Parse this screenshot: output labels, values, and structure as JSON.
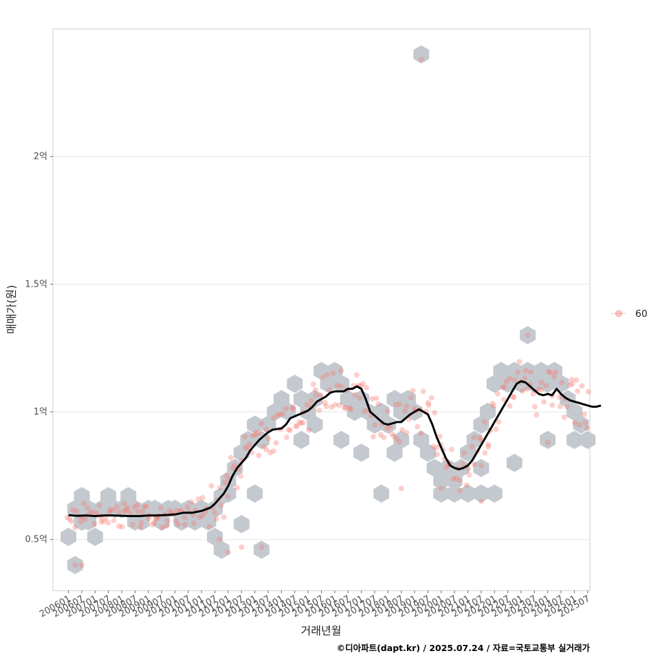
{
  "chart_data": {
    "type": "scatter",
    "title": "",
    "xlabel": "거래년월",
    "ylabel": "매매가(원)",
    "caption": "©디아파트(dapt.kr) / 2025.07.24 / 자료=국토교통부 실거래가",
    "x_unit": "months since 2006-01",
    "xlim": [
      -7,
      235
    ],
    "ylim": [
      0.3,
      2.5
    ],
    "grid": true,
    "legend_position": "right",
    "y_ticks": [
      {
        "value": 0.5,
        "label": "0.5억"
      },
      {
        "value": 1.0,
        "label": "1억"
      },
      {
        "value": 1.5,
        "label": "1.5억"
      },
      {
        "value": 2.0,
        "label": "2억"
      }
    ],
    "x_tick_labels": [
      "200601",
      "200607",
      "200701",
      "200707",
      "200801",
      "200807",
      "200901",
      "200907",
      "201001",
      "201007",
      "201101",
      "201107",
      "201201",
      "201207",
      "201301",
      "201307",
      "201401",
      "201407",
      "201501",
      "201507",
      "201601",
      "201607",
      "201701",
      "201707",
      "201801",
      "201807",
      "201901",
      "201907",
      "202001",
      "202007",
      "202101",
      "202107",
      "202201",
      "202207",
      "202301",
      "202307",
      "202401",
      "202407",
      "202501",
      "202507"
    ],
    "legend": [
      {
        "label": "60",
        "color": "#f8766d"
      }
    ],
    "colors": {
      "points": "#f8766d",
      "hex": "#c3c9cf",
      "trend": "#000000"
    },
    "hex_bins": [
      [
        0,
        0.51
      ],
      [
        3,
        0.62
      ],
      [
        6,
        0.67
      ],
      [
        9,
        0.62
      ],
      [
        12,
        0.51
      ],
      [
        9,
        0.57
      ],
      [
        6,
        0.57
      ],
      [
        15,
        0.62
      ],
      [
        18,
        0.67
      ],
      [
        21,
        0.62
      ],
      [
        24,
        0.62
      ],
      [
        27,
        0.67
      ],
      [
        30,
        0.62
      ],
      [
        33,
        0.57
      ],
      [
        36,
        0.62
      ],
      [
        30,
        0.57
      ],
      [
        39,
        0.62
      ],
      [
        42,
        0.57
      ],
      [
        45,
        0.62
      ],
      [
        48,
        0.62
      ],
      [
        51,
        0.57
      ],
      [
        54,
        0.62
      ],
      [
        57,
        0.57
      ],
      [
        60,
        0.62
      ],
      [
        63,
        0.57
      ],
      [
        66,
        0.62
      ],
      [
        69,
        0.67
      ],
      [
        72,
        0.73
      ],
      [
        75,
        0.78
      ],
      [
        78,
        0.84
      ],
      [
        81,
        0.89
      ],
      [
        84,
        0.95
      ],
      [
        87,
        0.89
      ],
      [
        90,
        0.95
      ],
      [
        93,
        1.0
      ],
      [
        96,
        1.05
      ],
      [
        99,
        1.0
      ],
      [
        102,
        1.11
      ],
      [
        105,
        1.05
      ],
      [
        108,
        1.0
      ],
      [
        111,
        1.05
      ],
      [
        114,
        1.16
      ],
      [
        117,
        1.11
      ],
      [
        120,
        1.16
      ],
      [
        123,
        1.11
      ],
      [
        126,
        1.05
      ],
      [
        129,
        1.0
      ],
      [
        132,
        1.05
      ],
      [
        135,
        1.0
      ],
      [
        138,
        0.95
      ],
      [
        141,
        1.0
      ],
      [
        144,
        0.95
      ],
      [
        147,
        1.05
      ],
      [
        150,
        1.0
      ],
      [
        153,
        1.05
      ],
      [
        156,
        1.0
      ],
      [
        159,
        0.89
      ],
      [
        162,
        0.84
      ],
      [
        165,
        0.78
      ],
      [
        168,
        0.73
      ],
      [
        171,
        0.78
      ],
      [
        174,
        0.73
      ],
      [
        177,
        0.78
      ],
      [
        180,
        0.84
      ],
      [
        183,
        0.89
      ],
      [
        186,
        0.95
      ],
      [
        189,
        1.0
      ],
      [
        192,
        1.11
      ],
      [
        195,
        1.16
      ],
      [
        198,
        1.11
      ],
      [
        201,
        1.16
      ],
      [
        204,
        1.11
      ],
      [
        207,
        1.16
      ],
      [
        210,
        1.11
      ],
      [
        213,
        1.16
      ],
      [
        216,
        1.11
      ],
      [
        219,
        1.16
      ],
      [
        222,
        1.11
      ],
      [
        225,
        1.05
      ],
      [
        228,
        1.0
      ],
      [
        231,
        0.95
      ],
      [
        66,
        0.51
      ],
      [
        72,
        0.68
      ],
      [
        78,
        0.56
      ],
      [
        84,
        0.68
      ],
      [
        87,
        0.46
      ],
      [
        3,
        0.4
      ],
      [
        69,
        0.46
      ],
      [
        150,
        0.89
      ],
      [
        141,
        0.68
      ],
      [
        168,
        0.68
      ],
      [
        186,
        0.68
      ],
      [
        192,
        0.68
      ],
      [
        201,
        0.8
      ],
      [
        216,
        0.89
      ],
      [
        228,
        0.89
      ],
      [
        234,
        0.89
      ],
      [
        207,
        1.3
      ],
      [
        159,
        2.4
      ],
      [
        105,
        0.89
      ],
      [
        111,
        0.95
      ],
      [
        123,
        0.89
      ],
      [
        132,
        0.84
      ],
      [
        147,
        0.84
      ],
      [
        174,
        0.68
      ],
      [
        180,
        0.68
      ],
      [
        186,
        0.78
      ]
    ],
    "trend": [
      [
        0,
        0.595
      ],
      [
        4,
        0.593
      ],
      [
        8,
        0.594
      ],
      [
        12,
        0.592
      ],
      [
        16,
        0.594
      ],
      [
        20,
        0.594
      ],
      [
        24,
        0.593
      ],
      [
        28,
        0.592
      ],
      [
        32,
        0.592
      ],
      [
        36,
        0.594
      ],
      [
        40,
        0.594
      ],
      [
        44,
        0.596
      ],
      [
        48,
        0.598
      ],
      [
        52,
        0.605
      ],
      [
        56,
        0.605
      ],
      [
        60,
        0.612
      ],
      [
        64,
        0.625
      ],
      [
        66,
        0.64
      ],
      [
        68,
        0.66
      ],
      [
        70,
        0.68
      ],
      [
        72,
        0.71
      ],
      [
        74,
        0.75
      ],
      [
        76,
        0.78
      ],
      [
        78,
        0.8
      ],
      [
        80,
        0.82
      ],
      [
        82,
        0.85
      ],
      [
        84,
        0.87
      ],
      [
        86,
        0.89
      ],
      [
        88,
        0.905
      ],
      [
        90,
        0.92
      ],
      [
        92,
        0.93
      ],
      [
        96,
        0.935
      ],
      [
        98,
        0.95
      ],
      [
        100,
        0.975
      ],
      [
        104,
        0.99
      ],
      [
        108,
        1.005
      ],
      [
        110,
        1.02
      ],
      [
        112,
        1.04
      ],
      [
        114,
        1.05
      ],
      [
        116,
        1.06
      ],
      [
        118,
        1.075
      ],
      [
        120,
        1.08
      ],
      [
        124,
        1.08
      ],
      [
        126,
        1.09
      ],
      [
        128,
        1.09
      ],
      [
        130,
        1.1
      ],
      [
        132,
        1.09
      ],
      [
        134,
        1.05
      ],
      [
        136,
        1.0
      ],
      [
        138,
        0.985
      ],
      [
        140,
        0.97
      ],
      [
        142,
        0.955
      ],
      [
        144,
        0.95
      ],
      [
        146,
        0.955
      ],
      [
        148,
        0.96
      ],
      [
        150,
        0.96
      ],
      [
        152,
        0.975
      ],
      [
        154,
        0.99
      ],
      [
        156,
        1.0
      ],
      [
        158,
        1.01
      ],
      [
        160,
        1.0
      ],
      [
        162,
        0.99
      ],
      [
        164,
        0.95
      ],
      [
        166,
        0.9
      ],
      [
        168,
        0.86
      ],
      [
        170,
        0.82
      ],
      [
        172,
        0.79
      ],
      [
        174,
        0.78
      ],
      [
        176,
        0.775
      ],
      [
        178,
        0.78
      ],
      [
        180,
        0.79
      ],
      [
        182,
        0.81
      ],
      [
        184,
        0.84
      ],
      [
        186,
        0.87
      ],
      [
        188,
        0.9
      ],
      [
        190,
        0.93
      ],
      [
        192,
        0.96
      ],
      [
        194,
        0.99
      ],
      [
        196,
        1.02
      ],
      [
        198,
        1.05
      ],
      [
        200,
        1.08
      ],
      [
        202,
        1.11
      ],
      [
        204,
        1.12
      ],
      [
        206,
        1.115
      ],
      [
        208,
        1.1
      ],
      [
        210,
        1.085
      ],
      [
        212,
        1.07
      ],
      [
        214,
        1.065
      ],
      [
        216,
        1.07
      ],
      [
        218,
        1.065
      ],
      [
        220,
        1.09
      ],
      [
        222,
        1.07
      ],
      [
        224,
        1.055
      ],
      [
        226,
        1.045
      ],
      [
        228,
        1.04
      ],
      [
        230,
        1.035
      ],
      [
        232,
        1.03
      ],
      [
        234,
        1.025
      ],
      [
        236,
        1.02
      ],
      [
        238,
        1.02
      ],
      [
        240,
        1.025
      ]
    ],
    "points_note": "individual transactions scattered around trend"
  }
}
